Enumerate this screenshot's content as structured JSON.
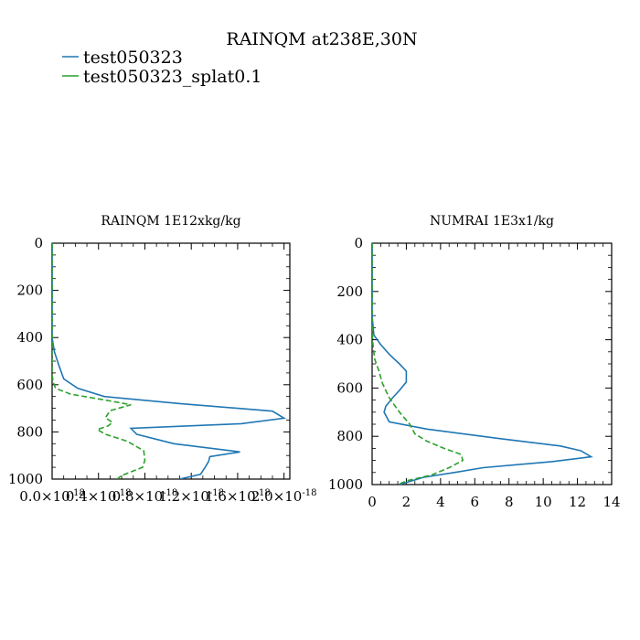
{
  "figure": {
    "title": "RAINQM at238E,30N",
    "legend": [
      {
        "label": "test050323",
        "color": "#1f77b4",
        "style": "solid"
      },
      {
        "label": "test050323_splat0.1",
        "color": "#2ca02c",
        "style": "solid"
      }
    ]
  },
  "chart_data": [
    {
      "type": "line",
      "title": "RAINQM  1E12xkg/kg",
      "xlabel": "",
      "ylabel": "",
      "xlim": [
        0,
        2.05e-18
      ],
      "ylim": [
        1000,
        0
      ],
      "xticks": [
        0,
        4e-19,
        8e-19,
        1.2e-18,
        1.6e-18,
        2e-18
      ],
      "xtick_labels": [
        "0.0×10^-18",
        "0.4×10^-18",
        "0.8×10^-18",
        "1.2×10^-18",
        "1.6×10^-18",
        "2.0×10^-18"
      ],
      "yticks": [
        0,
        200,
        400,
        600,
        800,
        1000
      ],
      "ytick_labels": [
        "0",
        "200",
        "400",
        "600",
        "800",
        "1000"
      ],
      "series": [
        {
          "name": "test050323",
          "color": "#1f77b4",
          "dash": "solid",
          "points": [
            [
              0,
              0
            ],
            [
              0,
              300
            ],
            [
              0,
              400
            ],
            [
              2e-20,
              460
            ],
            [
              6e-20,
              520
            ],
            [
              1e-19,
              575
            ],
            [
              2.2e-19,
              615
            ],
            [
              4.5e-19,
              650
            ],
            [
              1.1e-18,
              680
            ],
            [
              1.9e-18,
              712
            ],
            [
              2e-18,
              742
            ],
            [
              1.63e-18,
              765
            ],
            [
              6.8e-19,
              785
            ],
            [
              7.3e-19,
              810
            ],
            [
              1.05e-18,
              850
            ],
            [
              1.62e-18,
              885
            ],
            [
              1.36e-18,
              905
            ],
            [
              1.35e-18,
              925
            ],
            [
              1.32e-18,
              950
            ],
            [
              1.28e-18,
              980
            ],
            [
              1.1e-18,
              1000
            ]
          ]
        },
        {
          "name": "test050323_splat0.1",
          "color": "#2ca02c",
          "dash": "dashed",
          "points": [
            [
              0,
              0
            ],
            [
              0,
              400
            ],
            [
              0,
              560
            ],
            [
              1e-20,
              590
            ],
            [
              3e-20,
              615
            ],
            [
              1.6e-19,
              640
            ],
            [
              4.6e-19,
              665
            ],
            [
              6.8e-19,
              685
            ],
            [
              5e-19,
              710
            ],
            [
              4.6e-19,
              740
            ],
            [
              5.2e-19,
              760
            ],
            [
              4.8e-19,
              775
            ],
            [
              3.9e-19,
              790
            ],
            [
              4.6e-19,
              810
            ],
            [
              6.5e-19,
              840
            ],
            [
              7.9e-19,
              880
            ],
            [
              8e-19,
              920
            ],
            [
              7.8e-19,
              950
            ],
            [
              6e-19,
              985
            ],
            [
              5.6e-19,
              1000
            ]
          ]
        }
      ]
    },
    {
      "type": "line",
      "title": "NUMRAI  1E3x1/kg",
      "xlabel": "",
      "ylabel": "",
      "xlim": [
        0,
        14
      ],
      "ylim": [
        1000,
        0
      ],
      "xticks": [
        0,
        2,
        4,
        6,
        8,
        10,
        12,
        14
      ],
      "xtick_labels": [
        "0",
        "2",
        "4",
        "6",
        "8",
        "10",
        "12",
        "14"
      ],
      "yticks": [
        0,
        200,
        400,
        600,
        800,
        1000
      ],
      "ytick_labels": [
        "0",
        "200",
        "400",
        "600",
        "800",
        "1000"
      ],
      "series": [
        {
          "name": "test050323",
          "color": "#1f77b4",
          "dash": "solid",
          "points": [
            [
              0,
              0
            ],
            [
              0,
              300
            ],
            [
              0.1,
              380
            ],
            [
              0.5,
              420
            ],
            [
              1,
              460
            ],
            [
              1.6,
              500
            ],
            [
              2.0,
              530
            ],
            [
              2.0,
              575
            ],
            [
              1.6,
              610
            ],
            [
              1.2,
              640
            ],
            [
              0.8,
              675
            ],
            [
              0.7,
              700
            ],
            [
              1.0,
              740
            ],
            [
              3.2,
              770
            ],
            [
              7.5,
              810
            ],
            [
              11.0,
              840
            ],
            [
              12.2,
              860
            ],
            [
              12.8,
              885
            ],
            [
              10.5,
              905
            ],
            [
              6.5,
              930
            ],
            [
              4.8,
              950
            ],
            [
              3.0,
              970
            ],
            [
              1.6,
              1000
            ]
          ]
        },
        {
          "name": "test050323_splat0.1",
          "color": "#2ca02c",
          "dash": "dashed",
          "points": [
            [
              0,
              0
            ],
            [
              0,
              350
            ],
            [
              0.05,
              420
            ],
            [
              0.15,
              480
            ],
            [
              0.4,
              530
            ],
            [
              0.6,
              580
            ],
            [
              1.0,
              640
            ],
            [
              1.6,
              700
            ],
            [
              2.2,
              750
            ],
            [
              2.5,
              790
            ],
            [
              3.2,
              820
            ],
            [
              4.2,
              850
            ],
            [
              5.2,
              875
            ],
            [
              5.3,
              900
            ],
            [
              4.5,
              930
            ],
            [
              3.5,
              960
            ],
            [
              2.0,
              985
            ],
            [
              1.5,
              1000
            ]
          ]
        }
      ]
    }
  ]
}
